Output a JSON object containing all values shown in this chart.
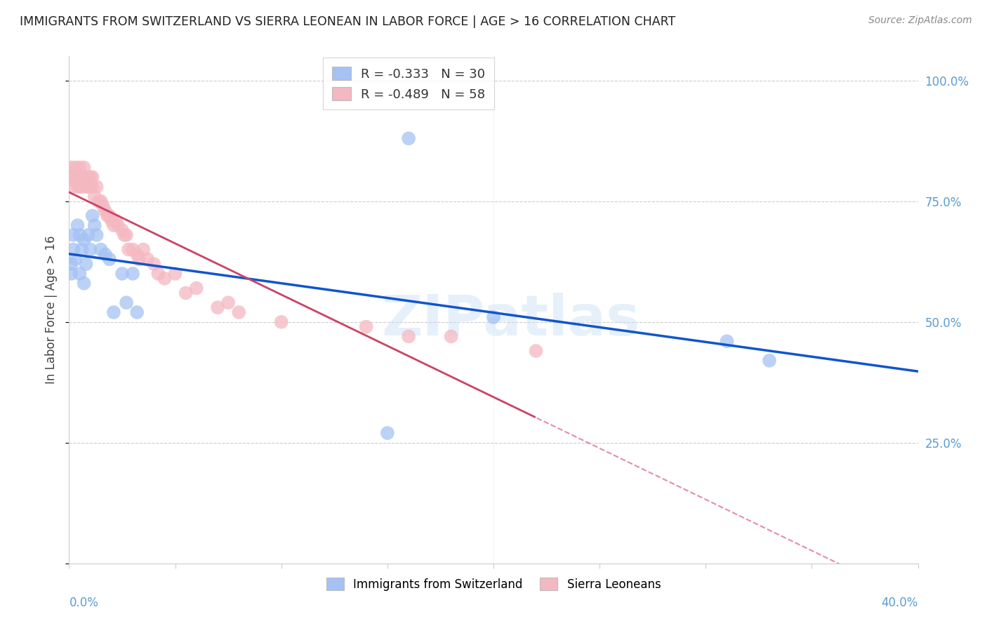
{
  "title": "IMMIGRANTS FROM SWITZERLAND VS SIERRA LEONEAN IN LABOR FORCE | AGE > 16 CORRELATION CHART",
  "source": "Source: ZipAtlas.com",
  "ylabel": "In Labor Force | Age > 16",
  "watermark": "ZIPatlas",
  "legend": {
    "swiss_r": "-0.333",
    "swiss_n": "30",
    "sierra_r": "-0.489",
    "sierra_n": "58"
  },
  "swiss_color": "#a4c2f4",
  "sierra_color": "#f4b8c1",
  "swiss_line_color": "#1155cc",
  "sierra_line_color": "#cc4466",
  "axis_color": "#5b9bd5",
  "background_color": "#ffffff",
  "xlim": [
    0.0,
    0.4
  ],
  "ylim": [
    0.0,
    1.05
  ],
  "swiss_points_x": [
    0.001,
    0.001,
    0.002,
    0.002,
    0.003,
    0.004,
    0.005,
    0.005,
    0.006,
    0.007,
    0.007,
    0.008,
    0.009,
    0.01,
    0.011,
    0.012,
    0.013,
    0.015,
    0.017,
    0.019,
    0.021,
    0.025,
    0.027,
    0.03,
    0.032,
    0.15,
    0.16,
    0.2,
    0.31,
    0.33
  ],
  "swiss_points_y": [
    0.62,
    0.6,
    0.65,
    0.68,
    0.63,
    0.7,
    0.68,
    0.6,
    0.65,
    0.67,
    0.58,
    0.62,
    0.68,
    0.65,
    0.72,
    0.7,
    0.68,
    0.65,
    0.64,
    0.63,
    0.52,
    0.6,
    0.54,
    0.6,
    0.52,
    0.27,
    0.88,
    0.51,
    0.46,
    0.42
  ],
  "sierra_points_x": [
    0.001,
    0.001,
    0.002,
    0.002,
    0.003,
    0.003,
    0.004,
    0.004,
    0.005,
    0.005,
    0.005,
    0.006,
    0.006,
    0.007,
    0.007,
    0.008,
    0.008,
    0.009,
    0.009,
    0.01,
    0.01,
    0.011,
    0.011,
    0.012,
    0.013,
    0.014,
    0.015,
    0.016,
    0.017,
    0.018,
    0.019,
    0.02,
    0.021,
    0.022,
    0.023,
    0.025,
    0.026,
    0.027,
    0.028,
    0.03,
    0.032,
    0.033,
    0.035,
    0.037,
    0.04,
    0.042,
    0.045,
    0.05,
    0.055,
    0.06,
    0.07,
    0.075,
    0.08,
    0.1,
    0.14,
    0.16,
    0.18,
    0.22
  ],
  "sierra_points_y": [
    0.8,
    0.82,
    0.8,
    0.78,
    0.82,
    0.79,
    0.8,
    0.78,
    0.82,
    0.8,
    0.78,
    0.8,
    0.78,
    0.82,
    0.79,
    0.8,
    0.78,
    0.8,
    0.78,
    0.8,
    0.78,
    0.8,
    0.78,
    0.76,
    0.78,
    0.75,
    0.75,
    0.74,
    0.73,
    0.72,
    0.72,
    0.71,
    0.7,
    0.71,
    0.7,
    0.69,
    0.68,
    0.68,
    0.65,
    0.65,
    0.64,
    0.63,
    0.65,
    0.63,
    0.62,
    0.6,
    0.59,
    0.6,
    0.56,
    0.57,
    0.53,
    0.54,
    0.52,
    0.5,
    0.49,
    0.47,
    0.47,
    0.44
  ]
}
